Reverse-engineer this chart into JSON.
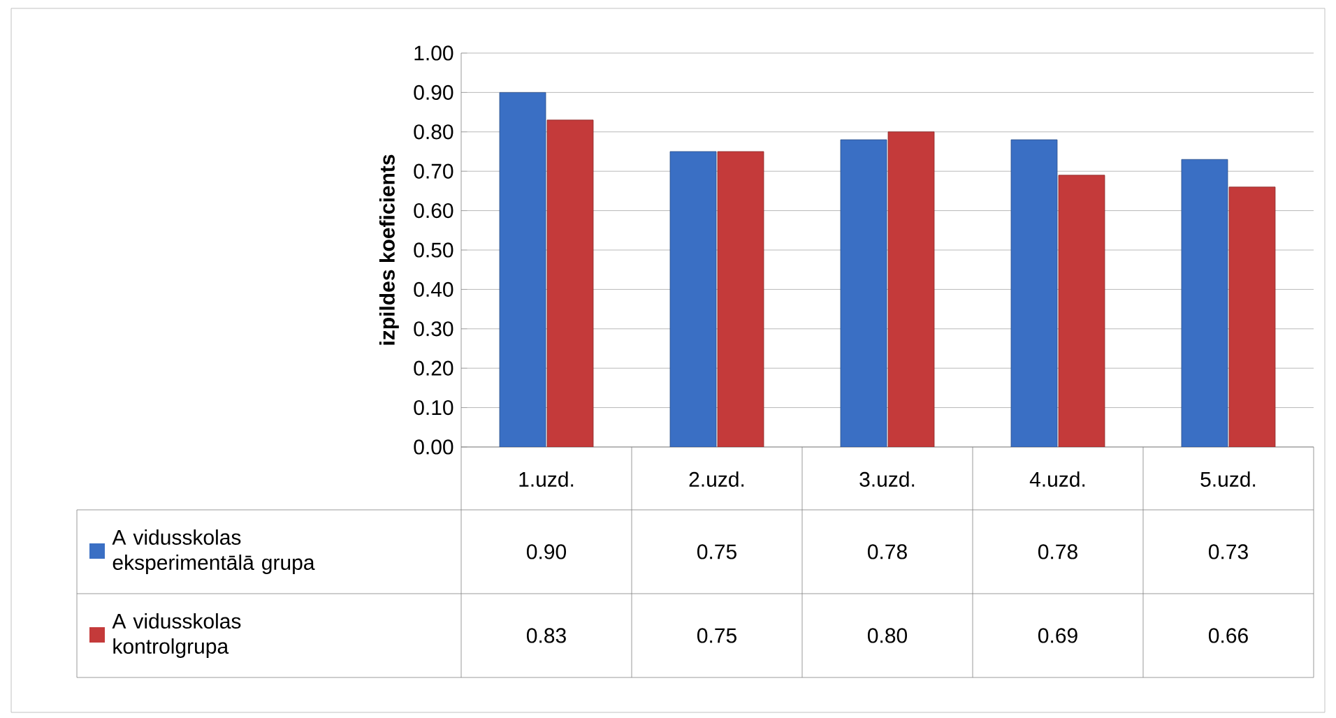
{
  "chart_data": {
    "type": "bar",
    "ylabel": "izpildes koeficients",
    "categories": [
      "1.uzd.",
      "2.uzd.",
      "3.uzd.",
      "4.uzd.",
      "5.uzd."
    ],
    "series": [
      {
        "name": "A vidusskolas eksperimentālā grupa",
        "color": "#3a6fc4",
        "values": [
          0.9,
          0.75,
          0.78,
          0.78,
          0.73
        ],
        "value_labels": [
          "0.90",
          "0.75",
          "0.78",
          "0.78",
          "0.73"
        ]
      },
      {
        "name": "A vidusskolas kontrolgrupa",
        "color": "#c43a3a",
        "values": [
          0.83,
          0.75,
          0.8,
          0.69,
          0.66
        ],
        "value_labels": [
          "0.83",
          "0.75",
          "0.80",
          "0.69",
          "0.66"
        ]
      }
    ],
    "ylim": [
      0,
      1
    ],
    "yticks": [
      {
        "value": 0,
        "label": "0.00"
      },
      {
        "value": 0.1,
        "label": "0.10"
      },
      {
        "value": 0.2,
        "label": "0.20"
      },
      {
        "value": 0.3,
        "label": "0.30"
      },
      {
        "value": 0.4,
        "label": "0.40"
      },
      {
        "value": 0.5,
        "label": "0.50"
      },
      {
        "value": 0.6,
        "label": "0.60"
      },
      {
        "value": 0.7,
        "label": "0.70"
      },
      {
        "value": 0.8,
        "label": "0.80"
      },
      {
        "value": 0.9,
        "label": "0.90"
      },
      {
        "value": 1,
        "label": "1.00"
      }
    ],
    "grid": "y",
    "legend": "bottom left"
  }
}
